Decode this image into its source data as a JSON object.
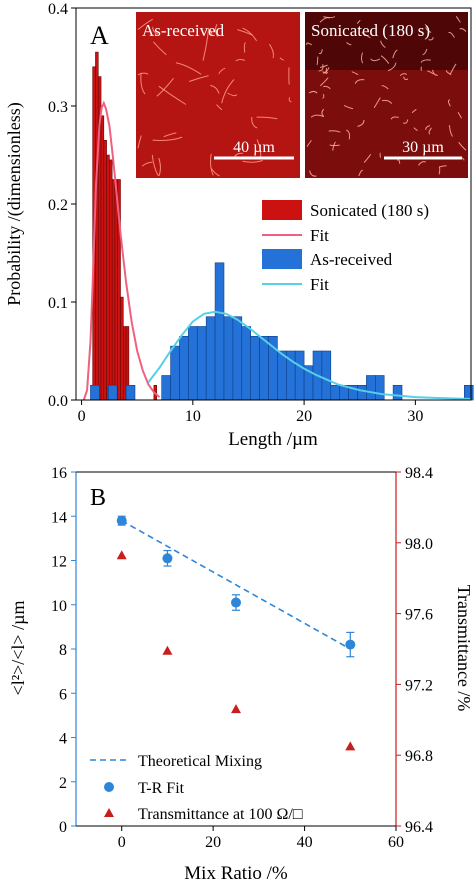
{
  "chart_data": [
    {
      "type": "bar",
      "panel_label": "A",
      "xlabel": "Length /µm",
      "ylabel": "Probability /(dimensionless)",
      "xlim": [
        -0.5,
        35
      ],
      "ylim": [
        0,
        0.4
      ],
      "xticks": [
        "0",
        "10",
        "20",
        "30"
      ],
      "yticks": [
        "0.0",
        "0.1",
        "0.2",
        "0.3",
        "0.4"
      ],
      "grid": false,
      "legend_position": "right",
      "series": [
        {
          "name": "Sonicated (180 s)",
          "kind": "histogram",
          "color": "#cc1111",
          "bin_width": 0.25,
          "bin_starts": [
            1.0,
            1.25,
            1.5,
            1.75,
            2.0,
            2.25,
            2.5,
            2.75,
            3.0,
            3.25,
            3.5,
            3.75,
            4.0,
            4.25,
            4.5,
            6.5
          ],
          "values": [
            0.34,
            0.355,
            0.33,
            0.29,
            0.265,
            0.25,
            0.245,
            0.225,
            0.225,
            0.225,
            0.105,
            0.075,
            0.075,
            0.015,
            0.015,
            0.015
          ]
        },
        {
          "name": "Fit",
          "kind": "line",
          "color": "#f06080",
          "x": [
            0.2,
            0.5,
            0.8,
            1.0,
            1.3,
            1.6,
            1.8,
            2.0,
            2.2,
            2.5,
            2.8,
            3.0,
            3.5,
            4.0,
            4.5,
            5.0,
            5.5,
            6.0,
            6.5,
            7.0
          ],
          "y": [
            0.0,
            0.01,
            0.06,
            0.12,
            0.22,
            0.28,
            0.298,
            0.303,
            0.297,
            0.28,
            0.25,
            0.228,
            0.17,
            0.12,
            0.08,
            0.05,
            0.03,
            0.016,
            0.008,
            0.003
          ]
        },
        {
          "name": "As-received",
          "kind": "histogram",
          "color": "#2472d8",
          "bin_width": 0.8,
          "bin_starts": [
            0.8,
            2.4,
            4.0,
            7.2,
            8.0,
            8.8,
            9.6,
            10.4,
            11.2,
            12.0,
            12.8,
            13.6,
            14.4,
            15.2,
            16.0,
            16.8,
            17.6,
            18.4,
            19.2,
            20.0,
            20.8,
            21.6,
            22.4,
            23.2,
            24.0,
            24.8,
            25.6,
            26.4,
            28.0,
            34.4
          ],
          "values": [
            0.015,
            0.015,
            0.015,
            0.025,
            0.055,
            0.065,
            0.075,
            0.075,
            0.085,
            0.14,
            0.085,
            0.085,
            0.075,
            0.065,
            0.065,
            0.065,
            0.05,
            0.05,
            0.05,
            0.035,
            0.05,
            0.05,
            0.015,
            0.015,
            0.015,
            0.015,
            0.025,
            0.025,
            0.015,
            0.015
          ]
        },
        {
          "name": "Fit",
          "kind": "line",
          "color": "#55d0e6",
          "x": [
            6.0,
            7.0,
            8.0,
            9.0,
            10.0,
            11.0,
            12.0,
            13.0,
            14.0,
            15.0,
            16.0,
            17.0,
            18.0,
            19.0,
            20.0,
            21.0,
            22.0,
            23.0,
            24.0,
            25.0,
            26.0,
            27.0,
            28.0,
            30.0,
            32.0,
            35.0
          ],
          "y": [
            0.018,
            0.033,
            0.05,
            0.066,
            0.08,
            0.088,
            0.09,
            0.088,
            0.082,
            0.074,
            0.065,
            0.056,
            0.047,
            0.039,
            0.032,
            0.026,
            0.021,
            0.016,
            0.013,
            0.01,
            0.008,
            0.006,
            0.005,
            0.003,
            0.002,
            0.001
          ]
        }
      ],
      "insets": [
        {
          "label": "As-received",
          "scale_bar": "40 µm"
        },
        {
          "label": "Sonicated (180 s)",
          "scale_bar": "30 µm"
        }
      ]
    },
    {
      "type": "scatter",
      "panel_label": "B",
      "xlabel": "Mix Ratio /%",
      "ylabel_left": "<l²>/<l> /µm",
      "ylabel_right": "Transmittance /%",
      "xlim": [
        -10,
        60
      ],
      "ylim_left": [
        0,
        16
      ],
      "ylim_right": [
        96.4,
        98.4
      ],
      "xticks": [
        "0",
        "20",
        "40",
        "60"
      ],
      "yticks_left": [
        "0",
        "2",
        "4",
        "6",
        "8",
        "10",
        "12",
        "14",
        "16"
      ],
      "yticks_right": [
        "96.4",
        "96.8",
        "97.2",
        "97.6",
        "98.0",
        "98.4"
      ],
      "grid": false,
      "legend_position": "bottom-left",
      "series": [
        {
          "name": "Theoretical Mixing",
          "kind": "dashed-line",
          "axis": "left",
          "color": "#2e86d8",
          "x": [
            0,
            50
          ],
          "y": [
            13.8,
            8.0
          ]
        },
        {
          "name": "T-R Fit",
          "kind": "points",
          "axis": "left",
          "color": "#2e86d8",
          "x": [
            0,
            10,
            25,
            50
          ],
          "y": [
            13.8,
            12.1,
            10.1,
            8.2
          ],
          "err": [
            0.2,
            0.35,
            0.35,
            0.55
          ]
        },
        {
          "name": "Transmittance at 100 Ω/□",
          "kind": "triangles",
          "axis": "right",
          "color": "#c81e1e",
          "x": [
            0,
            10,
            25,
            50
          ],
          "y": [
            97.93,
            97.39,
            97.06,
            96.85
          ]
        }
      ]
    }
  ]
}
